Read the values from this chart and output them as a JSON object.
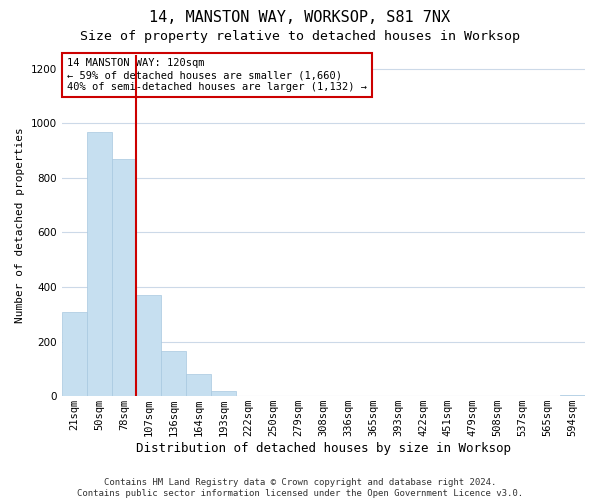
{
  "title": "14, MANSTON WAY, WORKSOP, S81 7NX",
  "subtitle": "Size of property relative to detached houses in Worksop",
  "xlabel": "Distribution of detached houses by size in Worksop",
  "ylabel": "Number of detached properties",
  "bin_labels": [
    "21sqm",
    "50sqm",
    "78sqm",
    "107sqm",
    "136sqm",
    "164sqm",
    "193sqm",
    "222sqm",
    "250sqm",
    "279sqm",
    "308sqm",
    "336sqm",
    "365sqm",
    "393sqm",
    "422sqm",
    "451sqm",
    "479sqm",
    "508sqm",
    "537sqm",
    "565sqm",
    "594sqm"
  ],
  "bar_values": [
    308,
    968,
    870,
    370,
    165,
    80,
    18,
    0,
    0,
    0,
    0,
    0,
    0,
    0,
    0,
    0,
    0,
    0,
    0,
    0,
    5
  ],
  "bar_color": "#c6dff0",
  "bar_edge_color": "#a8c8e0",
  "vline_x_index": 3,
  "vline_color": "#cc0000",
  "annotation_text": "14 MANSTON WAY: 120sqm\n← 59% of detached houses are smaller (1,660)\n40% of semi-detached houses are larger (1,132) →",
  "annotation_box_edge_color": "#cc0000",
  "annotation_box_face_color": "#ffffff",
  "ylim": [
    0,
    1250
  ],
  "yticks": [
    0,
    200,
    400,
    600,
    800,
    1000,
    1200
  ],
  "footer_text": "Contains HM Land Registry data © Crown copyright and database right 2024.\nContains public sector information licensed under the Open Government Licence v3.0.",
  "bg_color": "#ffffff",
  "grid_color": "#ccd9e8",
  "title_fontsize": 11,
  "subtitle_fontsize": 9.5,
  "xlabel_fontsize": 9,
  "ylabel_fontsize": 8,
  "tick_fontsize": 7.5,
  "annot_fontsize": 7.5,
  "footer_fontsize": 6.5
}
